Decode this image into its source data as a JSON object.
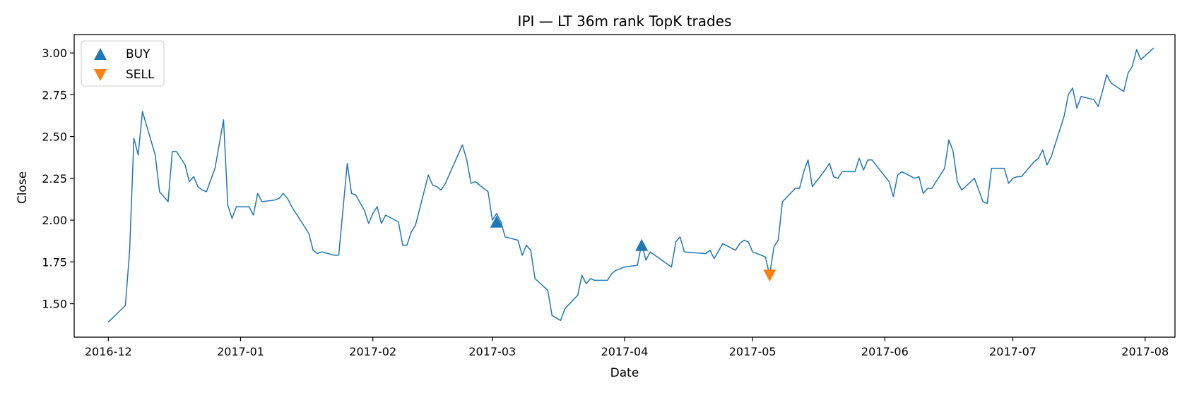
{
  "chart_data": {
    "type": "line",
    "title": "IPI — LT 36m rank TopK trades",
    "xlabel": "Date",
    "ylabel": "Close",
    "xlim": [
      "2016-11-23",
      "2017-08-08"
    ],
    "ylim": [
      1.3,
      3.11
    ],
    "x_ticks": [
      "2016-12-01",
      "2017-01-01",
      "2017-02-01",
      "2017-03-01",
      "2017-04-01",
      "2017-05-01",
      "2017-06-01",
      "2017-07-01",
      "2017-08-01"
    ],
    "x_tick_labels": [
      "2016-12",
      "2017-01",
      "2017-02",
      "2017-03",
      "2017-04",
      "2017-05",
      "2017-06",
      "2017-07",
      "2017-08"
    ],
    "y_ticks": [
      1.5,
      1.75,
      2.0,
      2.25,
      2.5,
      2.75,
      3.0
    ],
    "y_tick_labels": [
      "1.50",
      "1.75",
      "2.00",
      "2.25",
      "2.50",
      "2.75",
      "3.00"
    ],
    "grid": false,
    "legend_position": "top-left",
    "colors": {
      "line": "#1f77b4",
      "buy": "#1f77b4",
      "sell": "#ff7f0e"
    },
    "legend": [
      {
        "label": "BUY",
        "marker": "triangle-up",
        "color": "#1f77b4"
      },
      {
        "label": "SELL",
        "marker": "triangle-down",
        "color": "#ff7f0e"
      }
    ],
    "series": [
      {
        "points": [
          [
            "2016-12-01",
            1.39
          ],
          [
            "2016-12-05",
            1.49
          ],
          [
            "2016-12-06",
            1.82
          ],
          [
            "2016-12-07",
            2.49
          ],
          [
            "2016-12-08",
            2.39
          ],
          [
            "2016-12-09",
            2.65
          ],
          [
            "2016-12-12",
            2.39
          ],
          [
            "2016-12-13",
            2.17
          ],
          [
            "2016-12-15",
            2.11
          ],
          [
            "2016-12-16",
            2.41
          ],
          [
            "2016-12-17",
            2.41
          ],
          [
            "2016-12-19",
            2.33
          ],
          [
            "2016-12-20",
            2.23
          ],
          [
            "2016-12-21",
            2.26
          ],
          [
            "2016-12-22",
            2.2
          ],
          [
            "2016-12-23",
            2.18
          ],
          [
            "2016-12-24",
            2.17
          ],
          [
            "2016-12-26",
            2.31
          ],
          [
            "2016-12-28",
            2.6
          ],
          [
            "2016-12-29",
            2.09
          ],
          [
            "2016-12-30",
            2.01
          ],
          [
            "2016-12-31",
            2.08
          ],
          [
            "2017-01-01",
            2.08
          ],
          [
            "2017-01-02",
            2.08
          ],
          [
            "2017-01-03",
            2.08
          ],
          [
            "2017-01-04",
            2.03
          ],
          [
            "2017-01-05",
            2.16
          ],
          [
            "2017-01-06",
            2.11
          ],
          [
            "2017-01-09",
            2.12
          ],
          [
            "2017-01-10",
            2.13
          ],
          [
            "2017-01-11",
            2.16
          ],
          [
            "2017-01-12",
            2.13
          ],
          [
            "2017-01-13",
            2.08
          ],
          [
            "2017-01-17",
            1.92
          ],
          [
            "2017-01-18",
            1.82
          ],
          [
            "2017-01-19",
            1.8
          ],
          [
            "2017-01-20",
            1.81
          ],
          [
            "2017-01-23",
            1.79
          ],
          [
            "2017-01-24",
            1.79
          ],
          [
            "2017-01-26",
            2.34
          ],
          [
            "2017-01-27",
            2.16
          ],
          [
            "2017-01-28",
            2.15
          ],
          [
            "2017-01-30",
            2.06
          ],
          [
            "2017-01-31",
            1.98
          ],
          [
            "2017-02-01",
            2.04
          ],
          [
            "2017-02-02",
            2.08
          ],
          [
            "2017-02-03",
            1.98
          ],
          [
            "2017-02-04",
            2.03
          ],
          [
            "2017-02-07",
            1.99
          ],
          [
            "2017-02-08",
            1.85
          ],
          [
            "2017-02-09",
            1.85
          ],
          [
            "2017-02-10",
            1.93
          ],
          [
            "2017-02-11",
            1.97
          ],
          [
            "2017-02-14",
            2.27
          ],
          [
            "2017-02-15",
            2.21
          ],
          [
            "2017-02-16",
            2.2
          ],
          [
            "2017-02-17",
            2.18
          ],
          [
            "2017-02-18",
            2.22
          ],
          [
            "2017-02-22",
            2.45
          ],
          [
            "2017-02-23",
            2.36
          ],
          [
            "2017-02-24",
            2.22
          ],
          [
            "2017-02-25",
            2.23
          ],
          [
            "2017-02-28",
            2.17
          ],
          [
            "2017-03-01",
            2.0
          ],
          [
            "2017-03-02",
            2.04
          ],
          [
            "2017-03-03",
            1.99
          ],
          [
            "2017-03-04",
            1.9
          ],
          [
            "2017-03-07",
            1.88
          ],
          [
            "2017-03-08",
            1.79
          ],
          [
            "2017-03-09",
            1.85
          ],
          [
            "2017-03-10",
            1.82
          ],
          [
            "2017-03-11",
            1.65
          ],
          [
            "2017-03-14",
            1.58
          ],
          [
            "2017-03-15",
            1.43
          ],
          [
            "2017-03-17",
            1.4
          ],
          [
            "2017-03-18",
            1.47
          ],
          [
            "2017-03-21",
            1.55
          ],
          [
            "2017-03-22",
            1.67
          ],
          [
            "2017-03-23",
            1.62
          ],
          [
            "2017-03-24",
            1.65
          ],
          [
            "2017-03-25",
            1.64
          ],
          [
            "2017-03-28",
            1.64
          ],
          [
            "2017-03-29",
            1.68
          ],
          [
            "2017-03-30",
            1.7
          ],
          [
            "2017-04-01",
            1.72
          ],
          [
            "2017-04-04",
            1.73
          ],
          [
            "2017-04-05",
            1.86
          ],
          [
            "2017-04-06",
            1.76
          ],
          [
            "2017-04-07",
            1.81
          ],
          [
            "2017-04-12",
            1.72
          ],
          [
            "2017-04-13",
            1.87
          ],
          [
            "2017-04-14",
            1.9
          ],
          [
            "2017-04-15",
            1.81
          ],
          [
            "2017-04-20",
            1.8
          ],
          [
            "2017-04-21",
            1.82
          ],
          [
            "2017-04-22",
            1.77
          ],
          [
            "2017-04-24",
            1.86
          ],
          [
            "2017-04-27",
            1.82
          ],
          [
            "2017-04-28",
            1.86
          ],
          [
            "2017-04-29",
            1.88
          ],
          [
            "2017-04-30",
            1.87
          ],
          [
            "2017-05-01",
            1.81
          ],
          [
            "2017-05-04",
            1.78
          ],
          [
            "2017-05-05",
            1.67
          ],
          [
            "2017-05-06",
            1.84
          ],
          [
            "2017-05-07",
            1.88
          ],
          [
            "2017-05-08",
            2.11
          ],
          [
            "2017-05-11",
            2.19
          ],
          [
            "2017-05-12",
            2.19
          ],
          [
            "2017-05-13",
            2.29
          ],
          [
            "2017-05-14",
            2.36
          ],
          [
            "2017-05-15",
            2.2
          ],
          [
            "2017-05-18",
            2.3
          ],
          [
            "2017-05-19",
            2.34
          ],
          [
            "2017-05-20",
            2.26
          ],
          [
            "2017-05-21",
            2.25
          ],
          [
            "2017-05-22",
            2.29
          ],
          [
            "2017-05-25",
            2.29
          ],
          [
            "2017-05-26",
            2.37
          ],
          [
            "2017-05-27",
            2.3
          ],
          [
            "2017-05-28",
            2.36
          ],
          [
            "2017-05-29",
            2.36
          ],
          [
            "2017-06-02",
            2.23
          ],
          [
            "2017-06-03",
            2.14
          ],
          [
            "2017-06-04",
            2.27
          ],
          [
            "2017-06-05",
            2.29
          ],
          [
            "2017-06-08",
            2.25
          ],
          [
            "2017-06-09",
            2.26
          ],
          [
            "2017-06-10",
            2.16
          ],
          [
            "2017-06-11",
            2.19
          ],
          [
            "2017-06-12",
            2.19
          ],
          [
            "2017-06-15",
            2.31
          ],
          [
            "2017-06-16",
            2.48
          ],
          [
            "2017-06-17",
            2.41
          ],
          [
            "2017-06-18",
            2.23
          ],
          [
            "2017-06-19",
            2.18
          ],
          [
            "2017-06-22",
            2.25
          ],
          [
            "2017-06-23",
            2.18
          ],
          [
            "2017-06-24",
            2.11
          ],
          [
            "2017-06-25",
            2.1
          ],
          [
            "2017-06-26",
            2.31
          ],
          [
            "2017-06-29",
            2.31
          ],
          [
            "2017-06-30",
            2.22
          ],
          [
            "2017-07-01",
            2.25
          ],
          [
            "2017-07-02",
            2.26
          ],
          [
            "2017-07-03",
            2.26
          ],
          [
            "2017-07-06",
            2.35
          ],
          [
            "2017-07-07",
            2.37
          ],
          [
            "2017-07-08",
            2.42
          ],
          [
            "2017-07-09",
            2.33
          ],
          [
            "2017-07-10",
            2.38
          ],
          [
            "2017-07-13",
            2.62
          ],
          [
            "2017-07-14",
            2.75
          ],
          [
            "2017-07-15",
            2.79
          ],
          [
            "2017-07-16",
            2.67
          ],
          [
            "2017-07-17",
            2.74
          ],
          [
            "2017-07-20",
            2.72
          ],
          [
            "2017-07-21",
            2.68
          ],
          [
            "2017-07-22",
            2.77
          ],
          [
            "2017-07-23",
            2.87
          ],
          [
            "2017-07-24",
            2.82
          ],
          [
            "2017-07-27",
            2.77
          ],
          [
            "2017-07-28",
            2.88
          ],
          [
            "2017-07-29",
            2.92
          ],
          [
            "2017-07-30",
            3.02
          ],
          [
            "2017-07-31",
            2.96
          ],
          [
            "2017-08-03",
            3.03
          ]
        ]
      }
    ],
    "trades": [
      {
        "type": "BUY",
        "x": "2017-03-02",
        "y": 1.99
      },
      {
        "type": "BUY",
        "x": "2017-04-05",
        "y": 1.85
      },
      {
        "type": "SELL",
        "x": "2017-05-05",
        "y": 1.67
      }
    ]
  }
}
